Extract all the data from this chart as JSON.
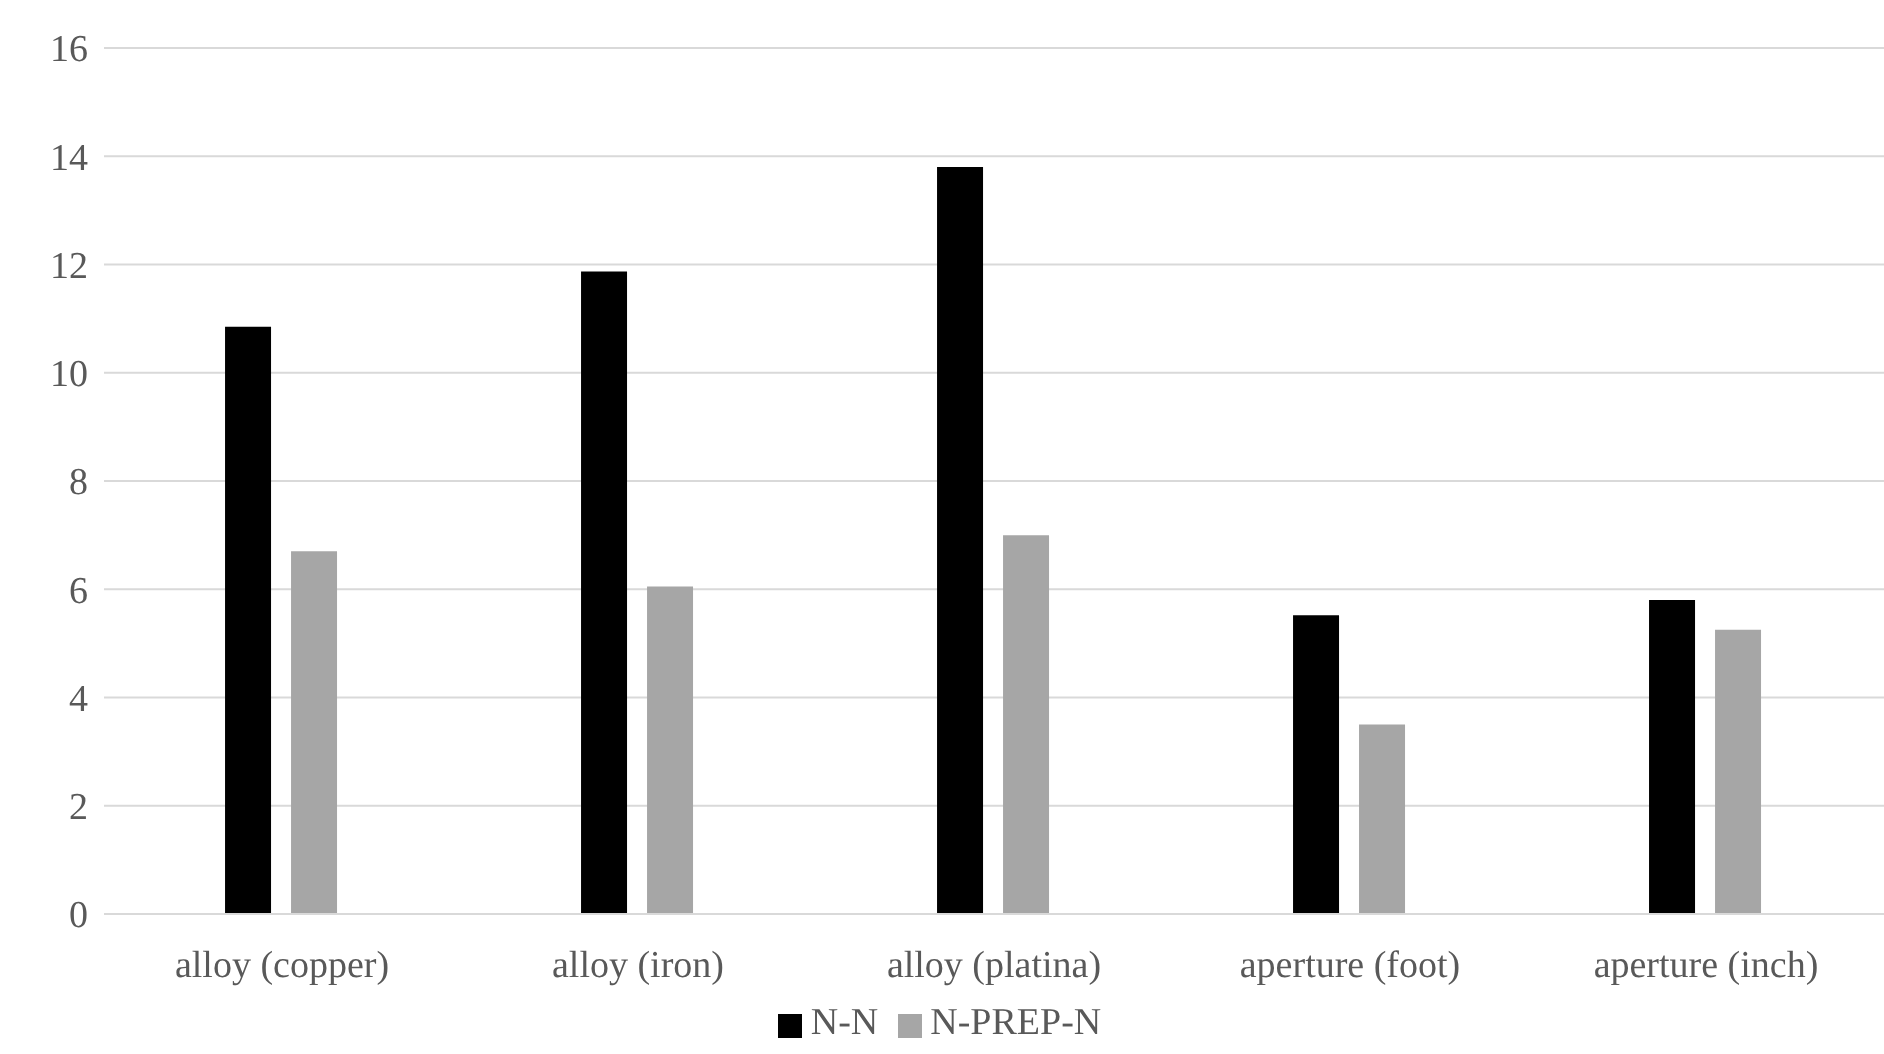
{
  "chart_data": {
    "type": "bar",
    "categories": [
      "alloy (copper)",
      "alloy (iron)",
      "alloy (platina)",
      "aperture (foot)",
      "aperture (inch)"
    ],
    "series": [
      {
        "name": "N-N",
        "color": "#000000",
        "values": [
          10.85,
          11.87,
          13.8,
          5.52,
          5.8
        ]
      },
      {
        "name": "N-PREP-N",
        "color": "#a6a6a6",
        "values": [
          6.7,
          6.05,
          7.0,
          3.5,
          5.25
        ]
      }
    ],
    "ylim": [
      0,
      16
    ],
    "yticks": [
      0,
      2,
      4,
      6,
      8,
      10,
      12,
      14,
      16
    ],
    "grid": "y",
    "legend": "bottom"
  }
}
